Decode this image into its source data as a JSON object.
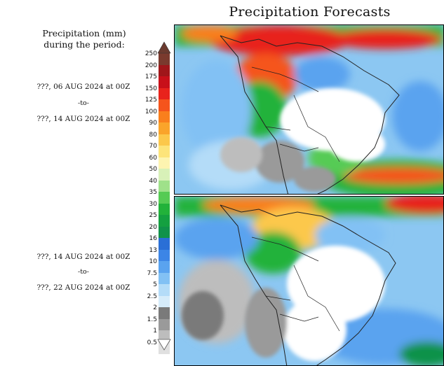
{
  "title": "Precipitation Forecasts",
  "legend": {
    "heading_line1": "Precipitation (mm)",
    "heading_line2": "during the period:",
    "scale": [
      "250",
      "200",
      "175",
      "150",
      "125",
      "100",
      "90",
      "80",
      "70",
      "60",
      "50",
      "40",
      "35",
      "30",
      "25",
      "20",
      "16",
      "13",
      "10",
      "7.5",
      "5",
      "2.5",
      "2",
      "1.5",
      "1",
      "0.5"
    ],
    "colors": [
      "#7a3a2e",
      "#a0161a",
      "#c8101a",
      "#e8231c",
      "#f5541c",
      "#f97f1d",
      "#faa42a",
      "#fcc84b",
      "#fde47a",
      "#fdf4b0",
      "#d8f1b8",
      "#9fe18a",
      "#56cb54",
      "#22b23a",
      "#14a040",
      "#10924a",
      "#2a6fd6",
      "#3c85e6",
      "#5aa3ef",
      "#82c1f4",
      "#b4dcf8",
      "#d6ecfa",
      "#7a7a7a",
      "#9a9a9a",
      "#bdbdbd",
      "#e0e0e0"
    ]
  },
  "periods": [
    {
      "start": "???, 06 AUG 2024 at 00Z",
      "sep": "-to-",
      "end": "???, 14 AUG 2024 at 00Z"
    },
    {
      "start": "???, 14 AUG 2024 at 00Z",
      "sep": "-to-",
      "end": "???, 22 AUG 2024 at 00Z"
    }
  ]
}
